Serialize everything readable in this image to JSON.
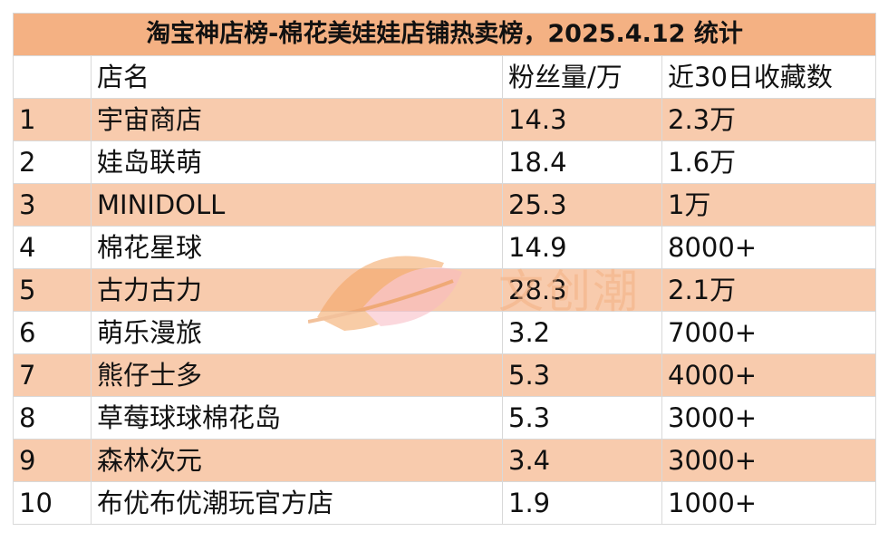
{
  "title": "淘宝神店榜-棉花美娃娃店铺热卖榜，2025.4.12 统计",
  "headers": [
    "",
    "店名",
    "粉丝量/万",
    "近30日收藏数"
  ],
  "rows": [
    {
      "rank": "1",
      "name": "宇宙商店",
      "fans": "14.3",
      "favs": "2.3万"
    },
    {
      "rank": "2",
      "name": "娃岛联萌",
      "fans": "18.4",
      "favs": "1.6万"
    },
    {
      "rank": "3",
      "name": "MINIDOLL",
      "fans": "25.3",
      "favs": "1万"
    },
    {
      "rank": "4",
      "name": "棉花星球",
      "fans": "14.9",
      "favs": "8000+"
    },
    {
      "rank": "5",
      "name": "古力古力",
      "fans": "28.3",
      "favs": "2.1万"
    },
    {
      "rank": "6",
      "name": "萌乐漫旅",
      "fans": "3.2",
      "favs": "7000+"
    },
    {
      "rank": "7",
      "name": "熊仔士多",
      "fans": "5.3",
      "favs": "4000+"
    },
    {
      "rank": "8",
      "name": "草莓球球棉花岛",
      "fans": "5.3",
      "favs": "3000+"
    },
    {
      "rank": "9",
      "name": "森林次元",
      "fans": "3.4",
      "favs": "3000+"
    },
    {
      "rank": "10",
      "name": "布优布优潮玩官方店",
      "fans": "1.9",
      "favs": "1000+"
    }
  ],
  "watermark": {
    "text": "文创潮",
    "logo": "leaf-logo-icon"
  },
  "colors": {
    "title_bg": "#f4b183",
    "odd_row_bg": "#f8cbad",
    "even_row_bg": "#ffffff",
    "border": "#d9d9d9"
  }
}
